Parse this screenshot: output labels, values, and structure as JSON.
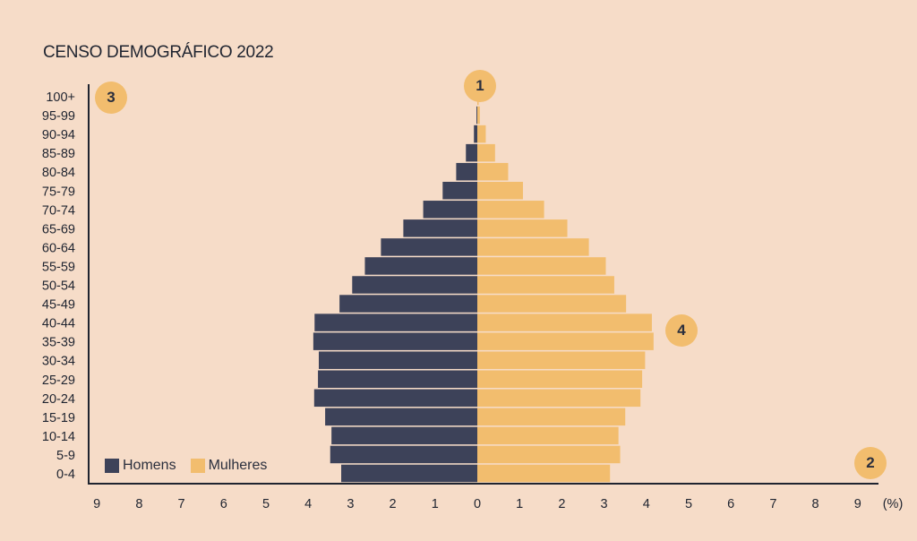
{
  "title": "CENSO DEMOGRÁFICO 2022",
  "colors": {
    "background": "#f6dcc8",
    "homens": "#3d4259",
    "mulheres": "#f2bd6e",
    "axis": "#1f2430",
    "badge": "#f2bd6e"
  },
  "badges": [
    "1",
    "2",
    "3",
    "4"
  ],
  "chart_data": {
    "type": "bar",
    "orientation": "horizontal-pyramid",
    "title": "CENSO DEMOGRÁFICO 2022",
    "categories": [
      "100+",
      "95-99",
      "90-94",
      "85-89",
      "80-84",
      "75-79",
      "70-74",
      "65-69",
      "60-64",
      "55-59",
      "50-54",
      "45-49",
      "40-44",
      "35-39",
      "30-34",
      "25-29",
      "20-24",
      "15-19",
      "10-14",
      "5-9",
      "0-4"
    ],
    "series": [
      {
        "name": "Homens",
        "side": "left",
        "values": [
          0.0,
          0.02,
          0.08,
          0.27,
          0.5,
          0.82,
          1.28,
          1.75,
          2.28,
          2.66,
          2.96,
          3.26,
          3.85,
          3.88,
          3.75,
          3.77,
          3.86,
          3.6,
          3.45,
          3.48,
          3.22
        ]
      },
      {
        "name": "Mulheres",
        "side": "right",
        "values": [
          0.01,
          0.06,
          0.2,
          0.42,
          0.73,
          1.08,
          1.58,
          2.13,
          2.64,
          3.04,
          3.24,
          3.52,
          4.13,
          4.17,
          3.97,
          3.9,
          3.86,
          3.5,
          3.34,
          3.38,
          3.14
        ]
      }
    ],
    "x_ticks": [
      "9",
      "8",
      "7",
      "6",
      "5",
      "4",
      "3",
      "2",
      "1",
      "0",
      "1",
      "2",
      "3",
      "4",
      "5",
      "6",
      "7",
      "8",
      "9"
    ],
    "x_unit": "(%)",
    "xlim": [
      -9,
      9
    ],
    "grid": false,
    "legend_position": "bottom-left"
  }
}
